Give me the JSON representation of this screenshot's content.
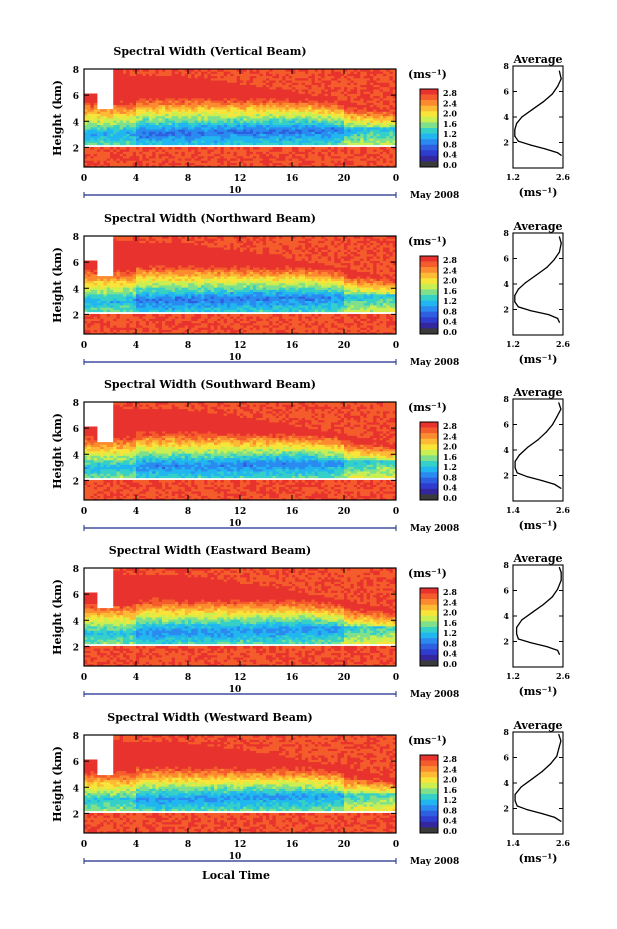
{
  "figure": {
    "bottom_xlabel": "Local Time",
    "month_label": "May 2008",
    "date_marker": "10"
  },
  "colorbar": {
    "unit": "(ms⁻¹)",
    "tick_labels": [
      "2.8",
      "2.4",
      "2.0",
      "1.6",
      "1.2",
      "0.8",
      "0.4",
      "0.0"
    ],
    "colors": [
      "#e8322e",
      "#f45c2c",
      "#fb8b2e",
      "#fdbb35",
      "#f7e53a",
      "#c9ef52",
      "#7fe08c",
      "#35d0c8",
      "#21b6ef",
      "#2a8af0",
      "#2d5fe0",
      "#2e3ccf",
      "#34279e",
      "#3a3a3a"
    ]
  },
  "chart_data": [
    {
      "type": "heatmap",
      "title": "Spectral Width (Vertical Beam)",
      "ylabel": "Height (km)",
      "xlim": [
        0,
        24
      ],
      "ylim": [
        0.5,
        8.0
      ],
      "xticks": [
        "0",
        "4",
        "8",
        "12",
        "16",
        "20",
        "0"
      ],
      "yticks": [
        "2",
        "4",
        "6",
        "8"
      ],
      "colorbar_range": [
        0.0,
        2.8
      ],
      "average_profile": {
        "title": "Average",
        "xlabel": "(ms⁻¹)",
        "xlim": [
          1.2,
          2.6
        ],
        "xticks": [
          "1.2",
          "2.6"
        ],
        "ylim": [
          0,
          8
        ],
        "yticks": [
          "2",
          "4",
          "6",
          "8"
        ],
        "points": [
          [
            2.55,
            1.0
          ],
          [
            2.45,
            1.2
          ],
          [
            2.1,
            1.5
          ],
          [
            1.7,
            1.8
          ],
          [
            1.35,
            2.1
          ],
          [
            1.25,
            2.5
          ],
          [
            1.25,
            3.0
          ],
          [
            1.3,
            3.5
          ],
          [
            1.45,
            4.0
          ],
          [
            1.75,
            4.6
          ],
          [
            2.05,
            5.2
          ],
          [
            2.3,
            5.8
          ],
          [
            2.45,
            6.4
          ],
          [
            2.55,
            7.0
          ],
          [
            2.5,
            7.6
          ]
        ]
      }
    },
    {
      "type": "heatmap",
      "title": "Spectral Width (Northward Beam)",
      "ylabel": "Height (km)",
      "xlim": [
        0,
        24
      ],
      "ylim": [
        0.5,
        8.0
      ],
      "xticks": [
        "0",
        "4",
        "8",
        "12",
        "16",
        "20",
        "0"
      ],
      "yticks": [
        "2",
        "4",
        "6",
        "8"
      ],
      "colorbar_range": [
        0.0,
        2.8
      ],
      "average_profile": {
        "title": "Average",
        "xlabel": "(ms⁻¹)",
        "xlim": [
          1.2,
          2.6
        ],
        "xticks": [
          "1.2",
          "2.6"
        ],
        "ylim": [
          0,
          8
        ],
        "yticks": [
          "2",
          "4",
          "6",
          "8"
        ],
        "points": [
          [
            2.5,
            1.0
          ],
          [
            2.45,
            1.3
          ],
          [
            2.2,
            1.6
          ],
          [
            1.7,
            1.9
          ],
          [
            1.35,
            2.2
          ],
          [
            1.25,
            2.6
          ],
          [
            1.25,
            3.1
          ],
          [
            1.35,
            3.6
          ],
          [
            1.55,
            4.1
          ],
          [
            1.85,
            4.7
          ],
          [
            2.15,
            5.3
          ],
          [
            2.35,
            5.9
          ],
          [
            2.5,
            6.5
          ],
          [
            2.55,
            7.2
          ],
          [
            2.5,
            7.7
          ]
        ]
      }
    },
    {
      "type": "heatmap",
      "title": "Spectral Width (Southward Beam)",
      "ylabel": "Height (km)",
      "xlim": [
        0,
        24
      ],
      "ylim": [
        0.5,
        8.0
      ],
      "xticks": [
        "0",
        "4",
        "8",
        "12",
        "16",
        "20",
        "0"
      ],
      "yticks": [
        "2",
        "4",
        "6",
        "8"
      ],
      "colorbar_range": [
        0.0,
        2.8
      ],
      "average_profile": {
        "title": "Average",
        "xlabel": "(ms⁻¹)",
        "xlim": [
          1.4,
          2.6
        ],
        "xticks": [
          "1.4",
          "2.6"
        ],
        "ylim": [
          0,
          8
        ],
        "yticks": [
          "2",
          "4",
          "6",
          "8"
        ],
        "points": [
          [
            2.55,
            1.0
          ],
          [
            2.4,
            1.3
          ],
          [
            2.1,
            1.6
          ],
          [
            1.75,
            1.9
          ],
          [
            1.5,
            2.2
          ],
          [
            1.45,
            2.6
          ],
          [
            1.45,
            3.1
          ],
          [
            1.55,
            3.6
          ],
          [
            1.75,
            4.2
          ],
          [
            2.0,
            4.8
          ],
          [
            2.2,
            5.4
          ],
          [
            2.35,
            6.0
          ],
          [
            2.45,
            6.6
          ],
          [
            2.55,
            7.2
          ],
          [
            2.5,
            7.7
          ]
        ]
      }
    },
    {
      "type": "heatmap",
      "title": "Spectral Width (Eastward Beam)",
      "ylabel": "Height (km)",
      "xlim": [
        0,
        24
      ],
      "ylim": [
        0.5,
        8.0
      ],
      "xticks": [
        "0",
        "4",
        "8",
        "12",
        "16",
        "20",
        "0"
      ],
      "yticks": [
        "2",
        "4",
        "6",
        "8"
      ],
      "colorbar_range": [
        0.0,
        2.8
      ],
      "average_profile": {
        "title": "Average",
        "xlabel": "(ms⁻¹)",
        "xlim": [
          1.2,
          2.6
        ],
        "xticks": [
          "1.2",
          "2.6"
        ],
        "ylim": [
          0,
          8
        ],
        "yticks": [
          "2",
          "4",
          "6",
          "8"
        ],
        "points": [
          [
            2.5,
            1.0
          ],
          [
            2.45,
            1.3
          ],
          [
            2.15,
            1.6
          ],
          [
            1.7,
            1.9
          ],
          [
            1.35,
            2.2
          ],
          [
            1.3,
            2.6
          ],
          [
            1.3,
            3.1
          ],
          [
            1.45,
            3.7
          ],
          [
            1.75,
            4.3
          ],
          [
            2.05,
            4.9
          ],
          [
            2.3,
            5.5
          ],
          [
            2.45,
            6.1
          ],
          [
            2.55,
            6.8
          ],
          [
            2.55,
            7.4
          ],
          [
            2.5,
            7.8
          ]
        ]
      }
    },
    {
      "type": "heatmap",
      "title": "Spectral Width (Westward Beam)",
      "ylabel": "Height (km)",
      "xlim": [
        0,
        24
      ],
      "ylim": [
        0.5,
        8.0
      ],
      "xticks": [
        "0",
        "4",
        "8",
        "12",
        "16",
        "20",
        "0"
      ],
      "yticks": [
        "2",
        "4",
        "6",
        "8"
      ],
      "colorbar_range": [
        0.0,
        2.8
      ],
      "average_profile": {
        "title": "Average",
        "xlabel": "(ms⁻¹)",
        "xlim": [
          1.4,
          2.6
        ],
        "xticks": [
          "1.4",
          "2.6"
        ],
        "ylim": [
          0,
          8
        ],
        "yticks": [
          "2",
          "4",
          "6",
          "8"
        ],
        "points": [
          [
            2.55,
            1.0
          ],
          [
            2.4,
            1.3
          ],
          [
            2.1,
            1.6
          ],
          [
            1.75,
            1.9
          ],
          [
            1.5,
            2.2
          ],
          [
            1.45,
            2.6
          ],
          [
            1.45,
            3.1
          ],
          [
            1.6,
            3.7
          ],
          [
            1.85,
            4.3
          ],
          [
            2.1,
            4.9
          ],
          [
            2.3,
            5.5
          ],
          [
            2.45,
            6.1
          ],
          [
            2.5,
            6.7
          ],
          [
            2.55,
            7.3
          ],
          [
            2.5,
            7.8
          ]
        ]
      }
    }
  ]
}
